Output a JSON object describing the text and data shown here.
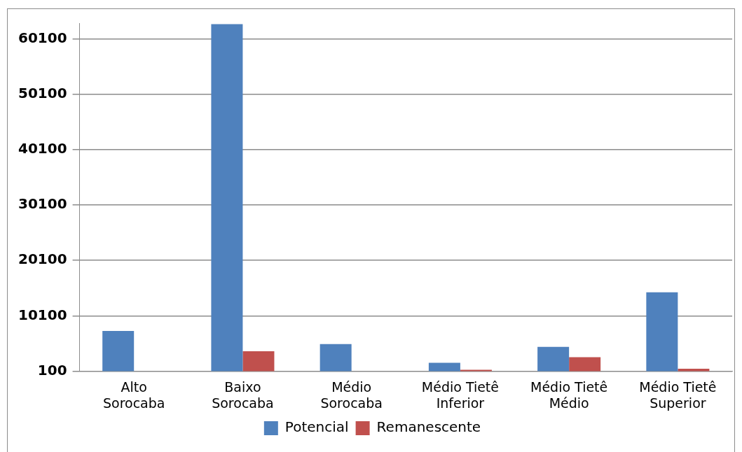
{
  "chart_data": {
    "type": "bar",
    "categories": [
      "Alto Sorocaba",
      "Baixo Sorocaba",
      "Médio Sorocaba",
      "Médio Tietê Inferior",
      "Médio Tietê Médio",
      "Médio Tietê Superior"
    ],
    "series": [
      {
        "name": "Potencial",
        "color": "#4f81bd",
        "values": [
          7350,
          62800,
          4980,
          1620,
          4480,
          14350
        ]
      },
      {
        "name": "Remanescente",
        "color": "#c0504d",
        "values": [
          null,
          3700,
          null,
          340,
          2610,
          540
        ]
      }
    ],
    "ylim": [
      100,
      63000
    ],
    "yticks": [
      100,
      10100,
      20100,
      30100,
      40100,
      50100,
      60100
    ],
    "grid": "y",
    "legend": "bottom"
  }
}
